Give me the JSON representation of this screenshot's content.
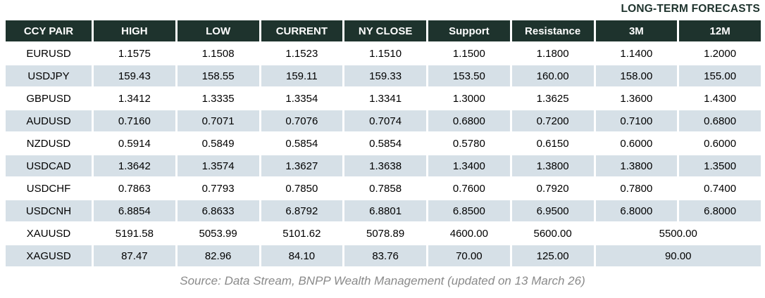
{
  "title": "LONG-TERM FORECASTS",
  "table": {
    "columns": [
      "CCY PAIR",
      "HIGH",
      "LOW",
      "CURRENT",
      "NY CLOSE",
      "Support",
      "Resistance",
      "3M",
      "12M"
    ],
    "rows": [
      {
        "cells": [
          "EURUSD",
          "1.1575",
          "1.1508",
          "1.1523",
          "1.1510",
          "1.1500",
          "1.1800",
          "1.1400",
          "1.2000"
        ]
      },
      {
        "cells": [
          "USDJPY",
          "159.43",
          "158.55",
          "159.11",
          "159.33",
          "153.50",
          "160.00",
          "158.00",
          "155.00"
        ]
      },
      {
        "cells": [
          "GBPUSD",
          "1.3412",
          "1.3335",
          "1.3354",
          "1.3341",
          "1.3000",
          "1.3625",
          "1.3600",
          "1.4300"
        ]
      },
      {
        "cells": [
          "AUDUSD",
          "0.7160",
          "0.7071",
          "0.7076",
          "0.7074",
          "0.6800",
          "0.7200",
          "0.7100",
          "0.6800"
        ]
      },
      {
        "cells": [
          "NZDUSD",
          "0.5914",
          "0.5849",
          "0.5854",
          "0.5854",
          "0.5780",
          "0.6150",
          "0.6000",
          "0.6000"
        ]
      },
      {
        "cells": [
          "USDCAD",
          "1.3642",
          "1.3574",
          "1.3627",
          "1.3638",
          "1.3400",
          "1.3800",
          "1.3800",
          "1.3500"
        ]
      },
      {
        "cells": [
          "USDCHF",
          "0.7863",
          "0.7793",
          "0.7850",
          "0.7858",
          "0.7600",
          "0.7920",
          "0.7800",
          "0.7400"
        ]
      },
      {
        "cells": [
          "USDCNH",
          "6.8854",
          "6.8633",
          "6.8792",
          "6.8801",
          "6.8500",
          "6.9500",
          "6.8000",
          "6.8000"
        ]
      },
      {
        "cells": [
          "XAUUSD",
          "5191.58",
          "5053.99",
          "5101.62",
          "5078.89",
          "4600.00",
          "5600.00"
        ],
        "merged_forecast": "5500.00"
      },
      {
        "cells": [
          "XAGUSD",
          "87.47",
          "82.96",
          "84.10",
          "83.76",
          "70.00",
          "125.00"
        ],
        "merged_forecast": "90.00"
      }
    ]
  },
  "source": "Source: Data Stream, BNPP Wealth Management (updated on 13 March 26)",
  "colors": {
    "header_bg": "#1e332d",
    "header_text": "#ffffff",
    "alt_row_bg": "#d6e0e7",
    "title_text": "#1e332d",
    "source_text": "#8a8a8a"
  }
}
